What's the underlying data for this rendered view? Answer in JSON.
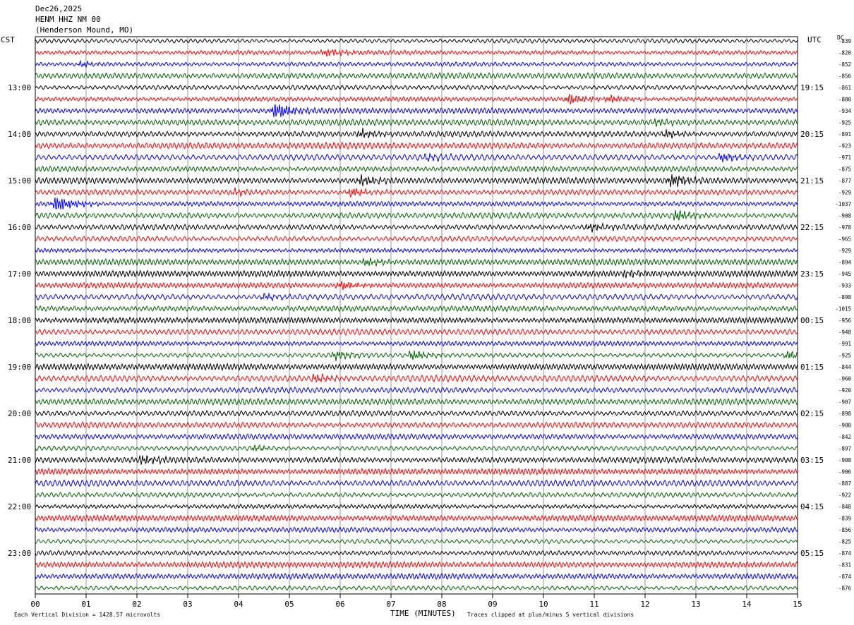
{
  "header": {
    "date": "Dec26,2025",
    "station": "HENM HHZ NM 00",
    "location": "(Henderson Mound, MO)"
  },
  "left_timezone": "CST",
  "right_timezone": "UTC",
  "dc_label": "DC",
  "chart_data": {
    "type": "line",
    "title": "HENM HHZ NM 00",
    "xlabel": "TIME (MINUTES)",
    "x_ticks": [
      "00",
      "01",
      "02",
      "03",
      "04",
      "05",
      "06",
      "07",
      "08",
      "09",
      "10",
      "11",
      "12",
      "13",
      "14",
      "15"
    ],
    "xlim": [
      0,
      15
    ],
    "trace_colors": [
      "#000000",
      "#ff0000",
      "#0000ff",
      "#006400"
    ],
    "cst_labels": [
      "13:00",
      "14:00",
      "15:00",
      "16:00",
      "17:00",
      "18:00",
      "19:00",
      "20:00",
      "21:00",
      "22:00",
      "23:00"
    ],
    "utc_labels": [
      "19:15",
      "20:15",
      "21:15",
      "22:15",
      "23:15",
      "00:15",
      "01:15",
      "02:15",
      "03:15",
      "04:15",
      "05:15"
    ],
    "dc_offsets": [
      -839,
      -820,
      -852,
      -856,
      -861,
      -880,
      -934,
      -925,
      -891,
      -923,
      -971,
      -875,
      -877,
      -929,
      -1037,
      -908,
      -978,
      -965,
      -929,
      -894,
      -945,
      -933,
      -898,
      -1015,
      -956,
      -948,
      -991,
      -925,
      -844,
      -960,
      -920,
      -907,
      -898,
      -900,
      -842,
      -897,
      -908,
      -906,
      -887,
      -922,
      -848,
      -839,
      -856,
      -825,
      -874,
      -831,
      -874,
      -876
    ],
    "events": [
      {
        "trace": 1,
        "minute": 5.7,
        "amp": 1.2
      },
      {
        "trace": 2,
        "minute": 0.9,
        "amp": 0.8
      },
      {
        "trace": 5,
        "minute": 10.5,
        "amp": 1.6
      },
      {
        "trace": 5,
        "minute": 11.3,
        "amp": 1.0
      },
      {
        "trace": 6,
        "minute": 4.7,
        "amp": 2.6
      },
      {
        "trace": 7,
        "minute": 12.2,
        "amp": 0.9
      },
      {
        "trace": 8,
        "minute": 6.4,
        "amp": 1.3
      },
      {
        "trace": 8,
        "minute": 12.4,
        "amp": 1.1
      },
      {
        "trace": 10,
        "minute": 13.5,
        "amp": 1.3
      },
      {
        "trace": 10,
        "minute": 7.7,
        "amp": 0.8
      },
      {
        "trace": 12,
        "minute": 6.4,
        "amp": 1.5
      },
      {
        "trace": 12,
        "minute": 12.5,
        "amp": 2.0
      },
      {
        "trace": 13,
        "minute": 6.2,
        "amp": 1.4
      },
      {
        "trace": 13,
        "minute": 3.9,
        "amp": 0.8
      },
      {
        "trace": 14,
        "minute": 0.4,
        "amp": 2.6
      },
      {
        "trace": 15,
        "minute": 12.6,
        "amp": 1.5
      },
      {
        "trace": 16,
        "minute": 10.9,
        "amp": 1.1
      },
      {
        "trace": 19,
        "minute": 6.5,
        "amp": 1.1
      },
      {
        "trace": 20,
        "minute": 11.6,
        "amp": 0.9
      },
      {
        "trace": 21,
        "minute": 6.0,
        "amp": 1.2
      },
      {
        "trace": 22,
        "minute": 4.5,
        "amp": 0.8
      },
      {
        "trace": 27,
        "minute": 5.9,
        "amp": 1.3
      },
      {
        "trace": 27,
        "minute": 7.4,
        "amp": 1.4
      },
      {
        "trace": 27,
        "minute": 14.8,
        "amp": 1.2
      },
      {
        "trace": 29,
        "minute": 5.5,
        "amp": 1.2
      },
      {
        "trace": 35,
        "minute": 4.3,
        "amp": 0.8
      },
      {
        "trace": 36,
        "minute": 2.1,
        "amp": 1.2
      }
    ]
  },
  "footer": {
    "vertical_division": "Each Vertical Division = 1428.57 microvolts",
    "clip_note": "Traces clipped at plus/minus 5 vertical divisions"
  }
}
